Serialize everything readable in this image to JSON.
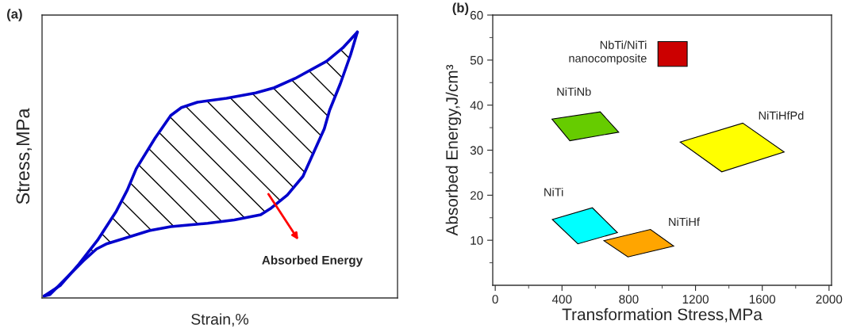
{
  "chart_data": [
    {
      "type": "other",
      "title": "(a)",
      "xlabel": "Strain,%",
      "ylabel": "Stress,MPa",
      "annotations": [
        "Absorbed Energy"
      ]
    },
    {
      "type": "area",
      "title": "(b)",
      "xlabel": "Transformation Stress,MPa",
      "ylabel": "Absorbed Energy,J/cm³",
      "xlim": [
        -15,
        2015
      ],
      "ylim": [
        0,
        60
      ],
      "xticks": [
        0,
        {
          "value": 200,
          "label": null
        },
        400,
        {
          "value": 600,
          "label": null
        },
        800,
        {
          "value": 1000,
          "label": null
        },
        1200,
        {
          "value": 1400,
          "label": null
        },
        1600,
        {
          "value": 1800,
          "label": null
        },
        2000
      ],
      "yticks": [
        {
          "value": 5,
          "label": null
        },
        10,
        {
          "value": 15,
          "label": null
        },
        20,
        {
          "value": 25,
          "label": null
        },
        30,
        {
          "value": 35,
          "label": null
        },
        40,
        {
          "value": 45,
          "label": null
        },
        50,
        {
          "value": 55,
          "label": null
        },
        60
      ],
      "series": [
        {
          "name": "NbTi/NiTi\nnanocomposite",
          "color": "#cc0000",
          "x": [
            975,
            975,
            1150,
            1150
          ],
          "values": [
            48.6,
            54.1,
            54.1,
            48.6
          ]
        },
        {
          "name": "NiTiNb",
          "color": "#66cc00",
          "x": [
            340,
            629,
            740,
            447
          ],
          "values": [
            36.9,
            38.5,
            34.0,
            32.1
          ]
        },
        {
          "name": "NiTiHfPd",
          "color": "#ffff00",
          "x": [
            1108,
            1483,
            1731,
            1357
          ],
          "values": [
            31.8,
            36.0,
            29.6,
            25.2
          ]
        },
        {
          "name": "NiTi",
          "color": "#00ffff",
          "x": [
            342,
            582,
            732,
            495
          ],
          "values": [
            14.6,
            17.2,
            11.7,
            9.2
          ]
        },
        {
          "name": "NiTiHf",
          "color": "#ffa500",
          "x": [
            651,
            930,
            1069,
            795
          ],
          "values": [
            9.9,
            12.4,
            8.7,
            6.3
          ]
        }
      ]
    }
  ]
}
